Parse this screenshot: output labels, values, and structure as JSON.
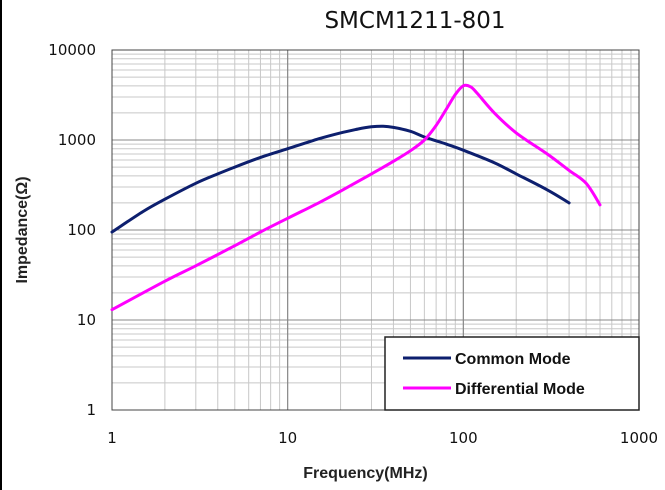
{
  "chart_data": {
    "type": "line",
    "title": "SMCM1211-801",
    "xlabel": "Frequency(MHz)",
    "ylabel": "Impedance(Ω)",
    "x_scale": "log",
    "y_scale": "log",
    "xlim": [
      1,
      1000
    ],
    "ylim": [
      1,
      10000
    ],
    "x_ticks": [
      "1",
      "10",
      "100",
      "1000"
    ],
    "y_ticks": [
      "1",
      "10",
      "100",
      "1000",
      "10000"
    ],
    "grid": true,
    "legend_position": "bottom-right",
    "series": [
      {
        "name": "Common Mode",
        "color": "#0d1f6e",
        "x": [
          1,
          1.5,
          2,
          3,
          4,
          5,
          7,
          10,
          15,
          20,
          25,
          30,
          35,
          40,
          50,
          60,
          70,
          80,
          100,
          150,
          200,
          300,
          400
        ],
        "y": [
          95,
          160,
          220,
          330,
          420,
          500,
          640,
          800,
          1030,
          1200,
          1320,
          1400,
          1420,
          1380,
          1250,
          1080,
          980,
          900,
          770,
          560,
          420,
          280,
          200
        ]
      },
      {
        "name": "Differential Mode",
        "color": "#ff00ff",
        "x": [
          1,
          2,
          3,
          5,
          7,
          10,
          15,
          20,
          30,
          40,
          50,
          60,
          70,
          80,
          90,
          100,
          110,
          120,
          150,
          200,
          300,
          400,
          500,
          600
        ],
        "y": [
          13,
          27,
          40,
          67,
          95,
          135,
          200,
          270,
          420,
          580,
          760,
          1000,
          1450,
          2200,
          3200,
          4000,
          3900,
          3300,
          2000,
          1200,
          700,
          460,
          330,
          190
        ]
      }
    ]
  }
}
